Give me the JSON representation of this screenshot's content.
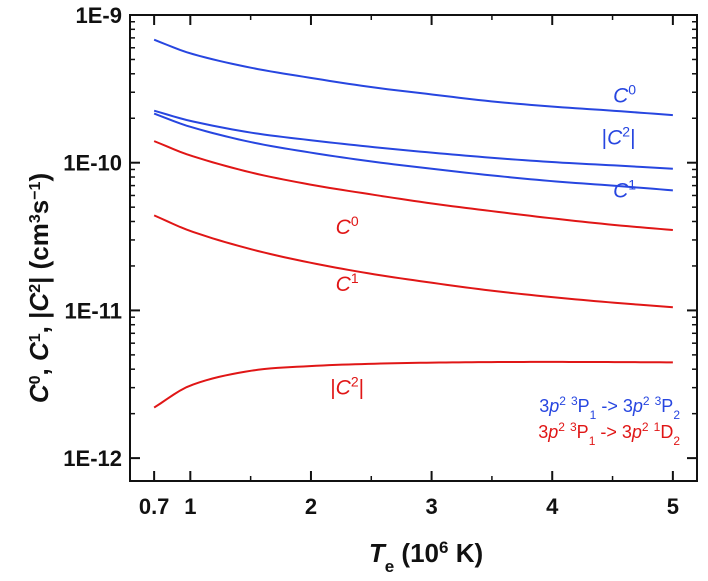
{
  "chart_data": {
    "type": "line",
    "xscale": "linear",
    "yscale": "log",
    "xlim": [
      0.5,
      5.2
    ],
    "ylim": [
      7e-13,
      1e-09
    ],
    "xticks": [
      {
        "value": 0.7,
        "label": "0.7"
      },
      {
        "value": 1,
        "label": "1"
      },
      {
        "value": 2,
        "label": "2"
      },
      {
        "value": 3,
        "label": "3"
      },
      {
        "value": 4,
        "label": "4"
      },
      {
        "value": 5,
        "label": "5"
      }
    ],
    "yticks": [
      {
        "value": 1e-12,
        "label": "1E-12"
      },
      {
        "value": 1e-11,
        "label": "1E-11"
      },
      {
        "value": 1e-10,
        "label": "1E-10"
      },
      {
        "value": 1e-09,
        "label": "1E-9"
      }
    ],
    "xlabel": {
      "main": "T",
      "sub": "e",
      "rest": " (10",
      "sup": "6",
      "end": " K)"
    },
    "ylabel": "C0, C1, |C2| (cm3s−1)",
    "grid": false,
    "colors": {
      "blue": "#2746e0",
      "red": "#e01616",
      "axis": "#111111"
    },
    "series": [
      {
        "name": "C0",
        "transition": "blue",
        "color": "#2746e0",
        "x": [
          0.7,
          1.0,
          1.5,
          2.0,
          2.5,
          3.0,
          3.5,
          4.0,
          4.5,
          5.0
        ],
        "y": [
          6.8e-10,
          5.5e-10,
          4.4e-10,
          3.75e-10,
          3.25e-10,
          2.9e-10,
          2.6e-10,
          2.4e-10,
          2.25e-10,
          2.1e-10
        ]
      },
      {
        "name": "|C2|",
        "transition": "blue",
        "color": "#2746e0",
        "x": [
          0.7,
          1.0,
          1.5,
          2.0,
          2.5,
          3.0,
          3.5,
          4.0,
          4.5,
          5.0
        ],
        "y": [
          2.25e-10,
          1.92e-10,
          1.6e-10,
          1.42e-10,
          1.28e-10,
          1.17e-10,
          1.08e-10,
          1.01e-10,
          9.6e-11,
          9.1e-11
        ]
      },
      {
        "name": "C1",
        "transition": "blue",
        "color": "#2746e0",
        "x": [
          0.7,
          1.0,
          1.5,
          2.0,
          2.5,
          3.0,
          3.5,
          4.0,
          4.5,
          5.0
        ],
        "y": [
          2.15e-10,
          1.75e-10,
          1.38e-10,
          1.17e-10,
          1.02e-10,
          9.1e-11,
          8.2e-11,
          7.5e-11,
          7e-11,
          6.5e-11
        ]
      },
      {
        "name": "C0",
        "transition": "red",
        "color": "#e01616",
        "x": [
          0.7,
          1.0,
          1.5,
          2.0,
          2.5,
          3.0,
          3.5,
          4.0,
          4.5,
          5.0
        ],
        "y": [
          1.4e-10,
          1.12e-10,
          8.6e-11,
          7.1e-11,
          6.1e-11,
          5.3e-11,
          4.7e-11,
          4.2e-11,
          3.8e-11,
          3.5e-11
        ]
      },
      {
        "name": "C1",
        "transition": "red",
        "color": "#e01616",
        "x": [
          0.7,
          1.0,
          1.5,
          2.0,
          2.5,
          3.0,
          3.5,
          4.0,
          4.5,
          5.0
        ],
        "y": [
          4.4e-11,
          3.45e-11,
          2.6e-11,
          2.1e-11,
          1.77e-11,
          1.54e-11,
          1.36e-11,
          1.23e-11,
          1.13e-11,
          1.05e-11
        ]
      },
      {
        "name": "|C2|",
        "transition": "red",
        "color": "#e01616",
        "x": [
          0.7,
          1.0,
          1.5,
          2.0,
          2.5,
          3.0,
          3.5,
          4.0,
          4.5,
          5.0
        ],
        "y": [
          2.2e-12,
          3.1e-12,
          3.9e-12,
          4.2e-12,
          4.35e-12,
          4.43e-12,
          4.47e-12,
          4.48e-12,
          4.47e-12,
          4.45e-12
        ]
      }
    ],
    "annotations": [
      {
        "base": "C",
        "sup": "0",
        "abs": false,
        "color": "#2746e0",
        "x": 4.6,
        "y": 2.55e-10
      },
      {
        "base": "C",
        "sup": "2",
        "abs": true,
        "color": "#2746e0",
        "x": 4.55,
        "y": 1.33e-10
      },
      {
        "base": "C",
        "sup": "1",
        "abs": false,
        "color": "#2746e0",
        "x": 4.6,
        "y": 5.8e-11
      },
      {
        "base": "C",
        "sup": "0",
        "abs": false,
        "color": "#e01616",
        "x": 2.3,
        "y": 3.3e-11
      },
      {
        "base": "C",
        "sup": "1",
        "abs": false,
        "color": "#e01616",
        "x": 2.3,
        "y": 1.35e-11
      },
      {
        "base": "C",
        "sup": "2",
        "abs": true,
        "color": "#e01616",
        "x": 2.3,
        "y": 2.7e-12
      }
    ],
    "legend": {
      "position": "bottom-right",
      "entries": [
        {
          "color": "#2746e0",
          "parts": [
            [
              "n",
              "3"
            ],
            [
              "i",
              "p"
            ],
            [
              "sup",
              "2"
            ],
            [
              "n",
              " "
            ],
            [
              "sup",
              "3"
            ],
            [
              "n",
              "P"
            ],
            [
              "sub",
              "1"
            ],
            [
              "n",
              " -> 3"
            ],
            [
              "i",
              "p"
            ],
            [
              "sup",
              "2"
            ],
            [
              "n",
              " "
            ],
            [
              "sup",
              "3"
            ],
            [
              "n",
              "P"
            ],
            [
              "sub",
              "2"
            ]
          ]
        },
        {
          "color": "#e01616",
          "parts": [
            [
              "n",
              "3"
            ],
            [
              "i",
              "p"
            ],
            [
              "sup",
              "2"
            ],
            [
              "n",
              " "
            ],
            [
              "sup",
              "3"
            ],
            [
              "n",
              "P"
            ],
            [
              "sub",
              "1"
            ],
            [
              "n",
              " -> 3"
            ],
            [
              "i",
              "p"
            ],
            [
              "sup",
              "2"
            ],
            [
              "n",
              " "
            ],
            [
              "sup",
              "1"
            ],
            [
              "n",
              "D"
            ],
            [
              "sub",
              "2"
            ]
          ]
        }
      ]
    }
  }
}
